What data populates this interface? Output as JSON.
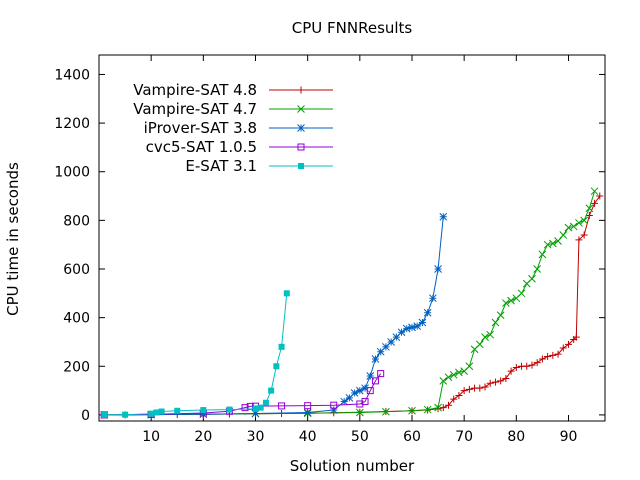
{
  "chart_data": {
    "type": "line",
    "title": "CPU FNNResults",
    "xlabel": "Solution number",
    "ylabel": "CPU time in seconds",
    "xlim": [
      0,
      97
    ],
    "ylim": [
      -25,
      1480
    ],
    "xticks": [
      10,
      20,
      30,
      40,
      50,
      60,
      70,
      80,
      90
    ],
    "yticks": [
      0,
      200,
      400,
      600,
      800,
      1000,
      1200,
      1400
    ],
    "grid": false,
    "legend_position": "top-left",
    "series": [
      {
        "name": "Vampire-SAT 4.8",
        "color": "#c00000",
        "marker": "plus",
        "points": [
          [
            1,
            0
          ],
          [
            5,
            0
          ],
          [
            10,
            1
          ],
          [
            15,
            2
          ],
          [
            20,
            3
          ],
          [
            25,
            4
          ],
          [
            30,
            5
          ],
          [
            35,
            6
          ],
          [
            40,
            7
          ],
          [
            45,
            9
          ],
          [
            50,
            11
          ],
          [
            55,
            14
          ],
          [
            60,
            17
          ],
          [
            63,
            20
          ],
          [
            65,
            26
          ],
          [
            66,
            30
          ],
          [
            67,
            40
          ],
          [
            68,
            65
          ],
          [
            69,
            80
          ],
          [
            70,
            100
          ],
          [
            71,
            105
          ],
          [
            72,
            110
          ],
          [
            73,
            110
          ],
          [
            74,
            115
          ],
          [
            75,
            130
          ],
          [
            76,
            135
          ],
          [
            77,
            140
          ],
          [
            78,
            150
          ],
          [
            79,
            180
          ],
          [
            80,
            195
          ],
          [
            81,
            200
          ],
          [
            82,
            200
          ],
          [
            83,
            205
          ],
          [
            84,
            215
          ],
          [
            85,
            230
          ],
          [
            86,
            240
          ],
          [
            87,
            245
          ],
          [
            88,
            250
          ],
          [
            89,
            275
          ],
          [
            90,
            290
          ],
          [
            91,
            310
          ],
          [
            91.5,
            320
          ],
          [
            92,
            720
          ],
          [
            93,
            740
          ],
          [
            94,
            820
          ],
          [
            95,
            870
          ],
          [
            96,
            900
          ]
        ]
      },
      {
        "name": "Vampire-SAT 4.7",
        "color": "#00a000",
        "marker": "cross",
        "points": [
          [
            1,
            0
          ],
          [
            10,
            1
          ],
          [
            20,
            3
          ],
          [
            30,
            5
          ],
          [
            40,
            7
          ],
          [
            50,
            10
          ],
          [
            55,
            13
          ],
          [
            60,
            17
          ],
          [
            63,
            22
          ],
          [
            65,
            30
          ],
          [
            66,
            140
          ],
          [
            67,
            155
          ],
          [
            68,
            165
          ],
          [
            69,
            175
          ],
          [
            70,
            180
          ],
          [
            71,
            200
          ],
          [
            72,
            270
          ],
          [
            73,
            290
          ],
          [
            74,
            320
          ],
          [
            75,
            330
          ],
          [
            76,
            380
          ],
          [
            77,
            410
          ],
          [
            78,
            460
          ],
          [
            79,
            470
          ],
          [
            80,
            480
          ],
          [
            81,
            500
          ],
          [
            82,
            540
          ],
          [
            83,
            560
          ],
          [
            84,
            600
          ],
          [
            85,
            660
          ],
          [
            86,
            700
          ],
          [
            87,
            705
          ],
          [
            88,
            715
          ],
          [
            89,
            740
          ],
          [
            90,
            770
          ],
          [
            91,
            775
          ],
          [
            92,
            790
          ],
          [
            93,
            800
          ],
          [
            94,
            850
          ],
          [
            95,
            920
          ]
        ]
      },
      {
        "name": "iProver-SAT 3.8",
        "color": "#0060c0",
        "marker": "star",
        "points": [
          [
            1,
            0
          ],
          [
            10,
            1
          ],
          [
            20,
            3
          ],
          [
            30,
            6
          ],
          [
            40,
            10
          ],
          [
            45,
            20
          ],
          [
            47,
            55
          ],
          [
            48,
            70
          ],
          [
            49,
            90
          ],
          [
            50,
            100
          ],
          [
            51,
            110
          ],
          [
            52,
            160
          ],
          [
            53,
            230
          ],
          [
            54,
            260
          ],
          [
            55,
            280
          ],
          [
            56,
            300
          ],
          [
            57,
            320
          ],
          [
            58,
            340
          ],
          [
            59,
            355
          ],
          [
            60,
            360
          ],
          [
            61,
            365
          ],
          [
            62,
            380
          ],
          [
            63,
            420
          ],
          [
            64,
            480
          ],
          [
            65,
            600
          ],
          [
            66,
            815
          ]
        ]
      },
      {
        "name": "cvc5-SAT 1.0.5",
        "color": "#9400d3",
        "marker": "square",
        "points": [
          [
            1,
            0
          ],
          [
            10,
            2
          ],
          [
            20,
            8
          ],
          [
            25,
            15
          ],
          [
            28,
            30
          ],
          [
            29,
            35
          ],
          [
            30,
            36
          ],
          [
            35,
            37
          ],
          [
            40,
            38
          ],
          [
            45,
            40
          ],
          [
            50,
            45
          ],
          [
            51,
            55
          ],
          [
            52,
            100
          ],
          [
            53,
            140
          ],
          [
            54,
            170
          ]
        ]
      },
      {
        "name": "E-SAT 3.1",
        "color": "#00c0c0",
        "marker": "filled-square",
        "points": [
          [
            1,
            0
          ],
          [
            5,
            1
          ],
          [
            10,
            5
          ],
          [
            11,
            10
          ],
          [
            12,
            14
          ],
          [
            15,
            17
          ],
          [
            20,
            20
          ],
          [
            25,
            22
          ],
          [
            30,
            25
          ],
          [
            31,
            30
          ],
          [
            32,
            50
          ],
          [
            33,
            100
          ],
          [
            34,
            200
          ],
          [
            35,
            280
          ],
          [
            36,
            500
          ]
        ]
      }
    ]
  }
}
